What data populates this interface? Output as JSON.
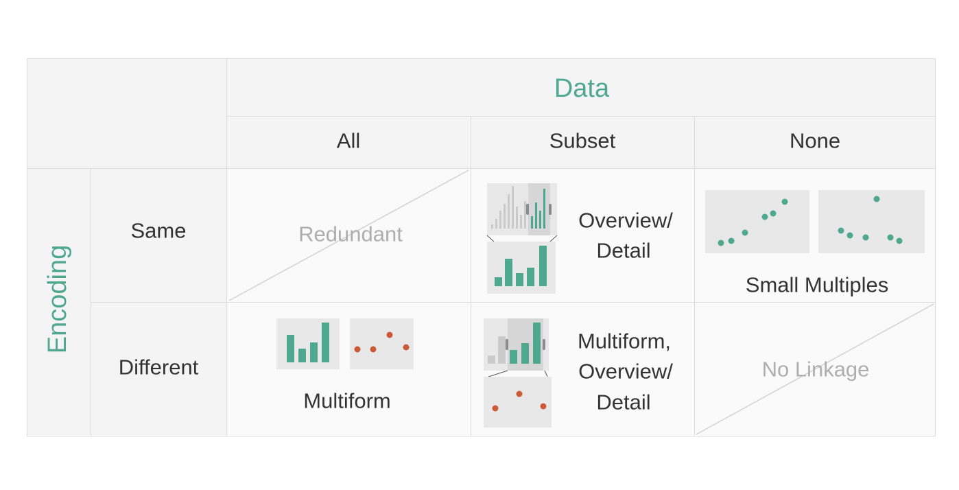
{
  "header": {
    "data_label": "Data",
    "columns": [
      "All",
      "Subset",
      "None"
    ]
  },
  "rows_header": {
    "encoding_label": "Encoding",
    "rows": [
      "Same",
      "Different"
    ]
  },
  "cells": {
    "same_all": "Redundant",
    "same_subset_line1": "Overview/",
    "same_subset_line2": "Detail",
    "same_none": "Small Multiples",
    "different_all": "Multiform",
    "different_subset_line1": "Multiform,",
    "different_subset_line2": "Overview/",
    "different_subset_line3": "Detail",
    "different_none": "No Linkage"
  },
  "colors": {
    "accent": "#4ea88d",
    "point_orange": "#cc5a37",
    "muted_text": "#aeaeae",
    "grid_line": "#dcdcdc"
  }
}
